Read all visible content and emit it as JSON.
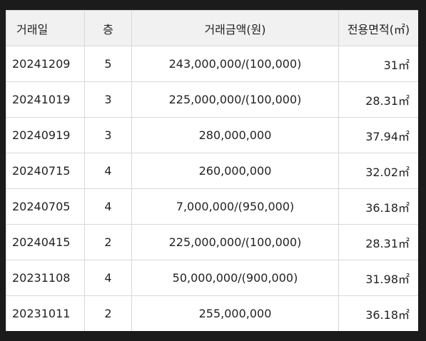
{
  "table": {
    "headers": {
      "date": "거래일",
      "floor": "층",
      "price": "거래금액(원)",
      "area": "전용면적(㎡)"
    },
    "rows": [
      {
        "date": "20241209",
        "floor": "5",
        "price": "243,000,000/(100,000)",
        "area": "31㎡"
      },
      {
        "date": "20241019",
        "floor": "3",
        "price": "225,000,000/(100,000)",
        "area": "28.31㎡"
      },
      {
        "date": "20240919",
        "floor": "3",
        "price": "280,000,000",
        "area": "37.94㎡"
      },
      {
        "date": "20240715",
        "floor": "4",
        "price": "260,000,000",
        "area": "32.02㎡"
      },
      {
        "date": "20240705",
        "floor": "4",
        "price": "7,000,000/(950,000)",
        "area": "36.18㎡"
      },
      {
        "date": "20240415",
        "floor": "2",
        "price": "225,000,000/(100,000)",
        "area": "28.31㎡"
      },
      {
        "date": "20231108",
        "floor": "4",
        "price": "50,000,000/(900,000)",
        "area": "31.98㎡"
      },
      {
        "date": "20231011",
        "floor": "2",
        "price": "255,000,000",
        "area": "36.18㎡"
      }
    ]
  }
}
